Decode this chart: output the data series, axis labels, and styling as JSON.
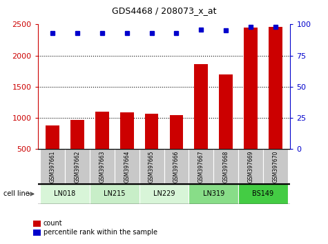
{
  "title": "GDS4468 / 208073_x_at",
  "samples": [
    "GSM397661",
    "GSM397662",
    "GSM397663",
    "GSM397664",
    "GSM397665",
    "GSM397666",
    "GSM397667",
    "GSM397668",
    "GSM397669",
    "GSM397670"
  ],
  "counts": [
    880,
    960,
    1100,
    1090,
    1060,
    1045,
    1860,
    1700,
    2450,
    2460
  ],
  "percentile_ranks": [
    93,
    93,
    93,
    93,
    93,
    93,
    96,
    95,
    98,
    98
  ],
  "ylim_left": [
    500,
    2500
  ],
  "ylim_right": [
    0,
    100
  ],
  "yticks_left": [
    500,
    1000,
    1500,
    2000,
    2500
  ],
  "yticks_right": [
    0,
    25,
    50,
    75,
    100
  ],
  "cell_lines": [
    {
      "label": "LN018",
      "start": 0,
      "end": 2,
      "color": "#d8f5d8"
    },
    {
      "label": "LN215",
      "start": 2,
      "end": 4,
      "color": "#c8eec8"
    },
    {
      "label": "LN229",
      "start": 4,
      "end": 6,
      "color": "#d8f5d8"
    },
    {
      "label": "LN319",
      "start": 6,
      "end": 8,
      "color": "#88dd88"
    },
    {
      "label": "BS149",
      "start": 8,
      "end": 10,
      "color": "#44cc44"
    }
  ],
  "bar_color": "#cc0000",
  "dot_color": "#0000cc",
  "bar_width": 0.55,
  "sample_box_color": "#c8c8c8",
  "cell_line_label": "cell line",
  "legend_count_label": "count",
  "legend_pct_label": "percentile rank within the sample"
}
